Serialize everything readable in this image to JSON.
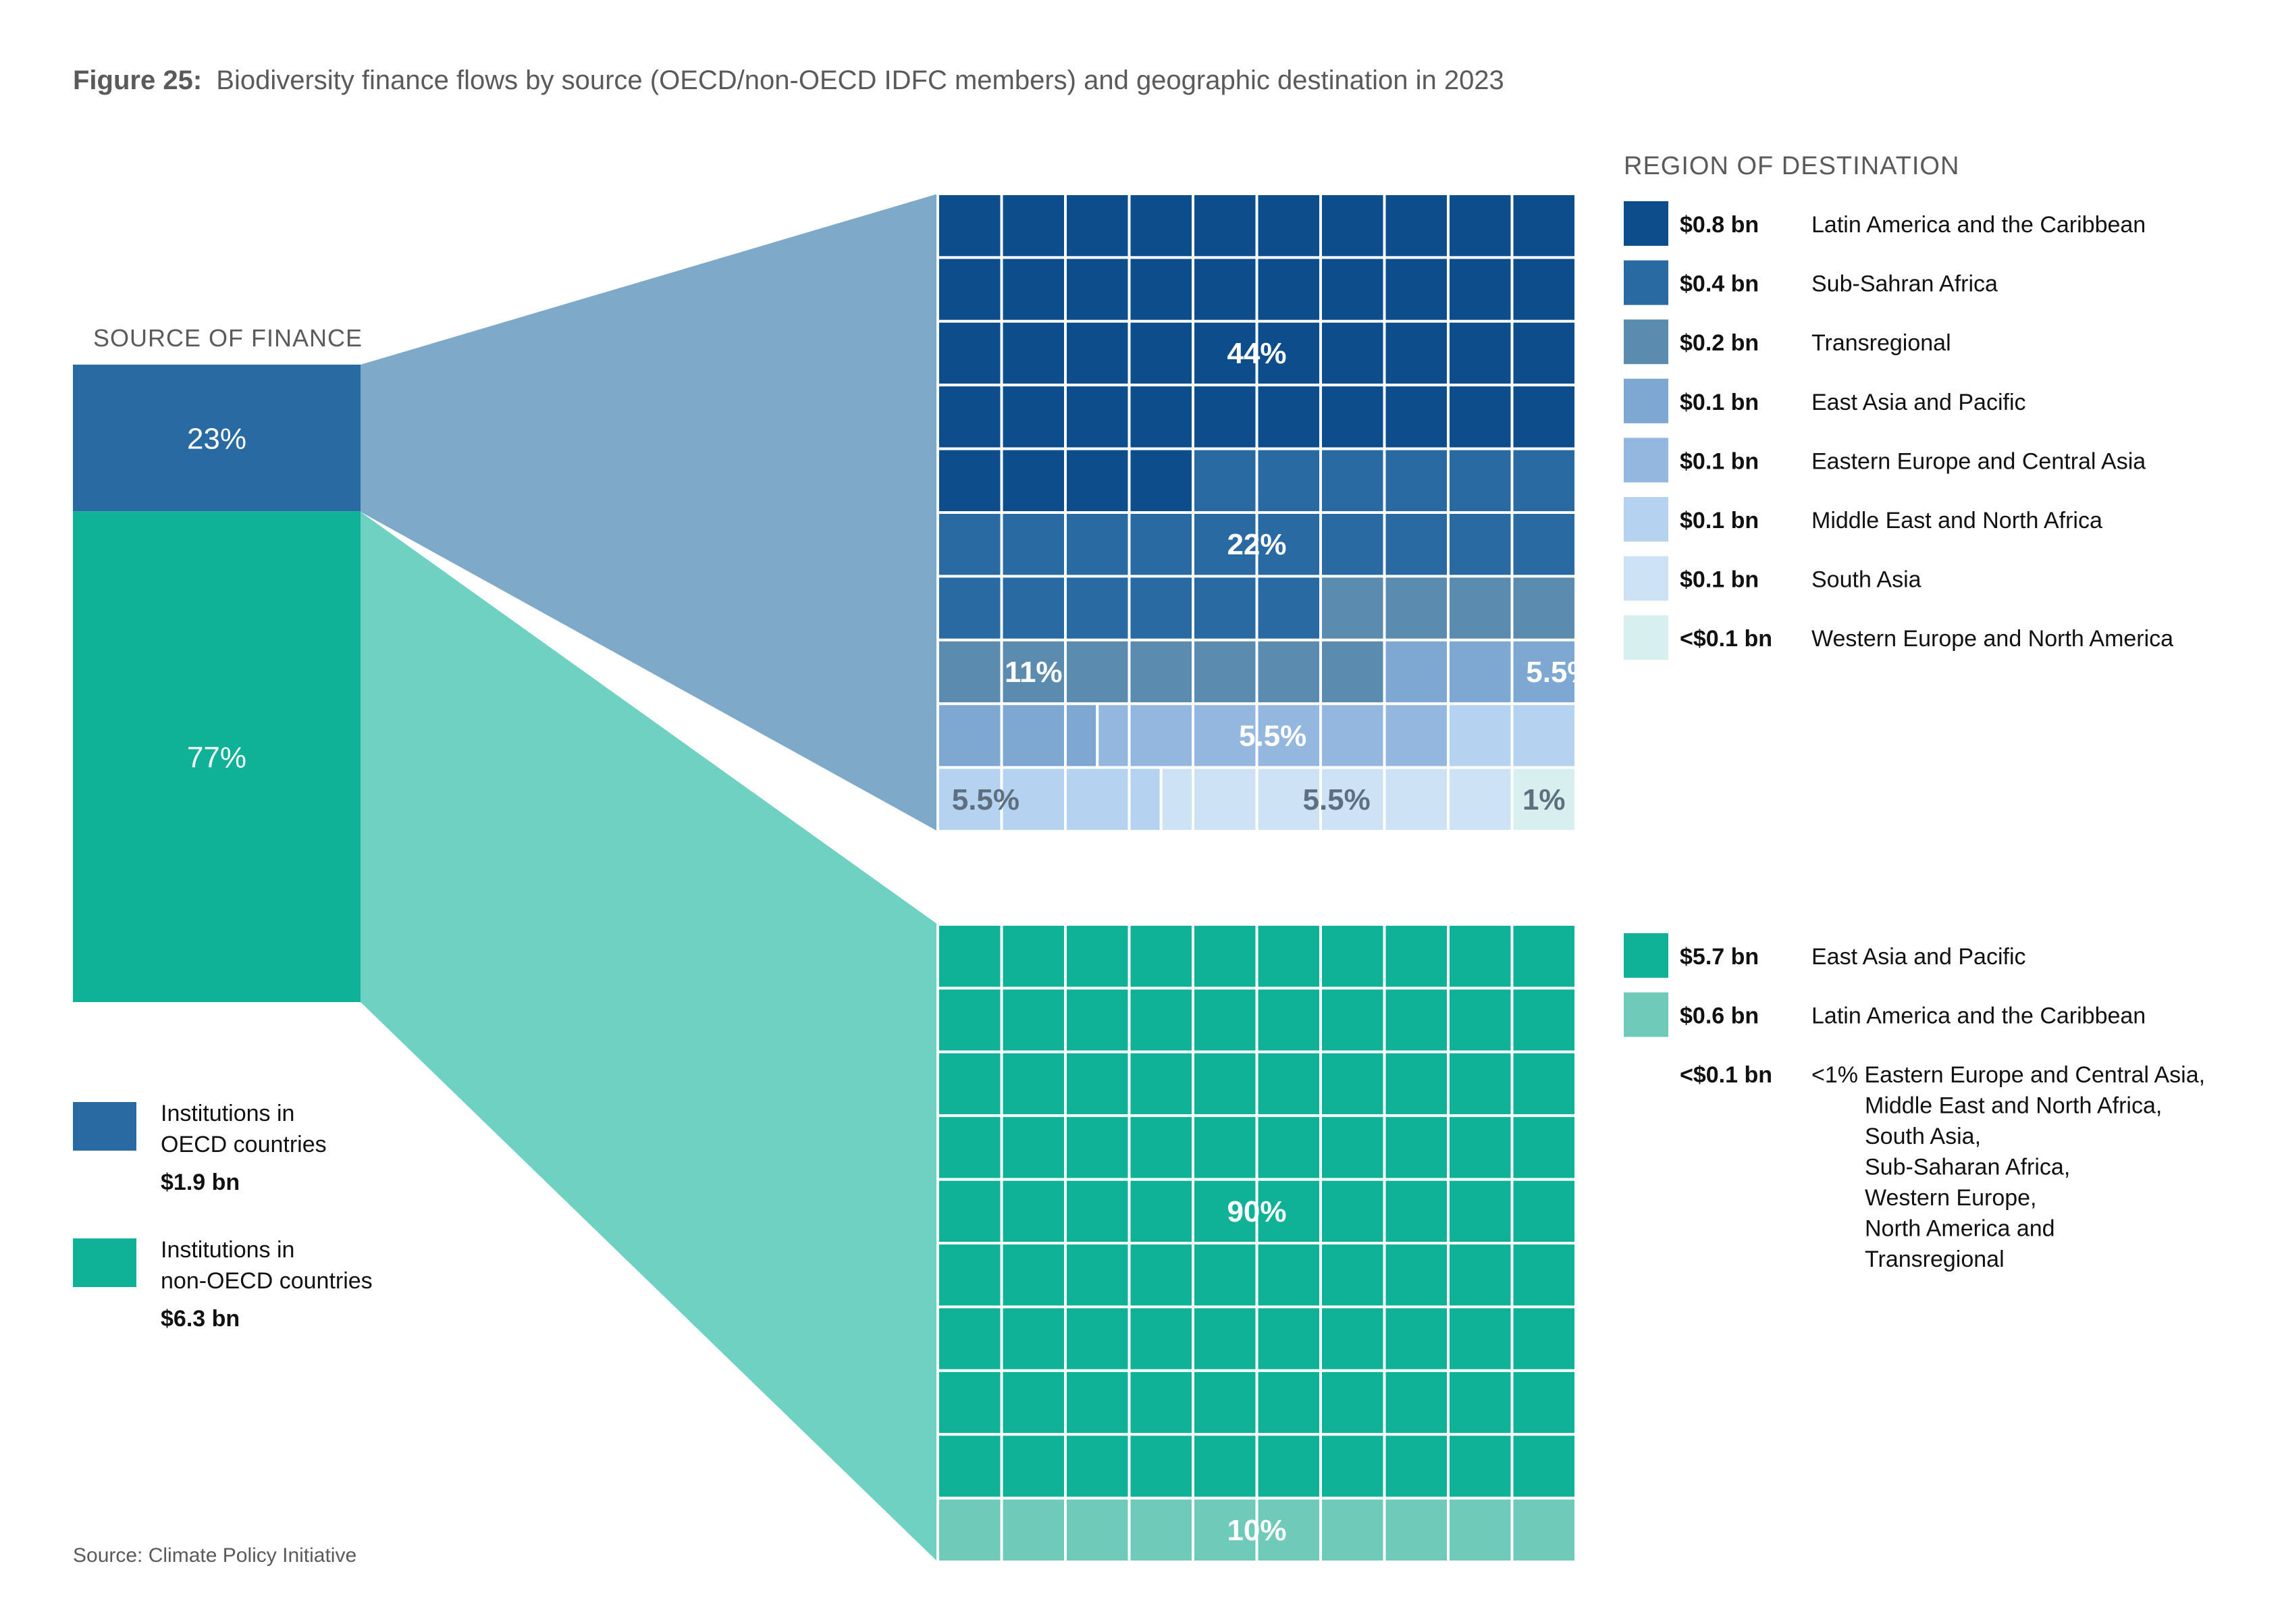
{
  "figure": {
    "title_prefix": "Figure 25:",
    "title": "Biodiversity finance flows by source (OECD/non-OECD IDFC members) and geographic destination in 2023",
    "source_heading": "SOURCE OF FINANCE",
    "destination_heading": "REGION OF DESTINATION",
    "source_note": "Source: Climate Policy Initiative"
  },
  "colors": {
    "oecd": "#2a6aa3",
    "non_oecd": "#0fb197",
    "oecd_funnel": "#7fa9c9",
    "non_oecd_funnel": "#6fd1c2",
    "grid_line": "#ffffff",
    "text_dark": "#111111",
    "text_gray": "#5a5a5a"
  },
  "chart_data": [
    {
      "type": "bar",
      "title": "SOURCE OF FINANCE",
      "stacked": true,
      "segments": [
        {
          "label": "23%",
          "percent": 23,
          "color": "#2a6aa3"
        },
        {
          "label": "77%",
          "percent": 77,
          "color": "#0fb197"
        }
      ],
      "legend": [
        {
          "line1": "Institutions in",
          "line2": "OECD countries",
          "value": "$1.9 bn",
          "color": "#2a6aa3"
        },
        {
          "line1": "Institutions in",
          "line2": "non-OECD countries",
          "value": "$6.3 bn",
          "color": "#0fb197"
        }
      ]
    },
    {
      "type": "waffle",
      "group": "OECD",
      "grid": [
        10,
        10
      ],
      "categories": [
        {
          "region": "Latin America and the Caribbean",
          "amount": "$0.8 bn",
          "cells": 44,
          "label": "44%",
          "color": "#0d4d8c",
          "label_color": "#ffffff"
        },
        {
          "region": "Sub-Sahran Africa",
          "amount": "$0.4 bn",
          "cells": 22,
          "label": "22%",
          "color": "#2a6aa3",
          "label_color": "#ffffff"
        },
        {
          "region": "Transregional",
          "amount": "$0.2 bn",
          "cells": 11,
          "label": "11%",
          "color": "#5b8bae",
          "label_color": "#ffffff"
        },
        {
          "region": "East Asia and Pacific",
          "amount": "$0.1 bn",
          "cells": 5.5,
          "label": "5.5%",
          "color": "#7ea8d1",
          "label_color": "#ffffff"
        },
        {
          "region": "Eastern Europe and Central Asia",
          "amount": "$0.1 bn",
          "cells": 5.5,
          "label": "5.5%",
          "color": "#94b7df",
          "label_color": "#ffffff"
        },
        {
          "region": "Middle East and North Africa",
          "amount": "$0.1 bn",
          "cells": 5.5,
          "label": "5.5%",
          "color": "#b5d2f0",
          "label_color": "#5e6f80"
        },
        {
          "region": "South Asia",
          "amount": "$0.1 bn",
          "cells": 5.5,
          "label": "5.5%",
          "color": "#cde3f5",
          "label_color": "#5e6f80"
        },
        {
          "region": "Western Europe and North America",
          "amount": "<$0.1 bn",
          "cells": 1,
          "label": "1%",
          "color": "#d8efef",
          "label_color": "#5e6f80"
        }
      ]
    },
    {
      "type": "waffle",
      "group": "non-OECD",
      "grid": [
        10,
        10
      ],
      "categories": [
        {
          "region": "East Asia and Pacific",
          "amount": "$5.7 bn",
          "cells": 90,
          "label": "90%",
          "color": "#0fb197",
          "label_color": "#ffffff"
        },
        {
          "region": "Latin America and the Caribbean",
          "amount": "$0.6 bn",
          "cells": 10,
          "label": "10%",
          "color": "#6fcab9",
          "label_color": "#ffffff"
        }
      ],
      "other": {
        "amount": "<$0.1 bn",
        "lines": [
          "<1% Eastern Europe and Central Asia,",
          "Middle East and North Africa,",
          "South Asia,",
          "Sub-Saharan Africa,",
          "Western Europe,",
          "North America and",
          "Transregional"
        ]
      }
    }
  ]
}
